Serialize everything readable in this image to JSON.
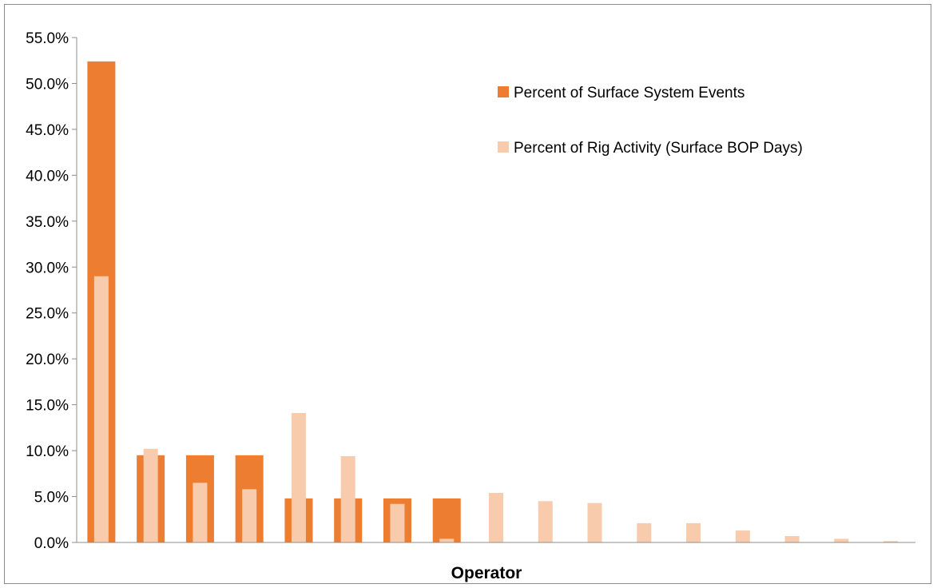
{
  "chart_data": {
    "type": "bar",
    "title": "",
    "xlabel": "Operator",
    "ylabel": "",
    "ylim": [
      0,
      55
    ],
    "yticks": [
      "0.0%",
      "5.0%",
      "10.0%",
      "15.0%",
      "20.0%",
      "25.0%",
      "30.0%",
      "35.0%",
      "40.0%",
      "45.0%",
      "50.0%",
      "55.0%"
    ],
    "categories": [
      "",
      "",
      "",
      "",
      "",
      "",
      "",
      "",
      "",
      "",
      "",
      "",
      "",
      "",
      "",
      "",
      ""
    ],
    "grid": false,
    "legend_placement": "top-right",
    "series": [
      {
        "name": "Percent of Surface System Events",
        "color": "#ed7d31",
        "values": [
          52.4,
          9.5,
          9.5,
          9.5,
          4.8,
          4.8,
          4.8,
          4.8,
          0,
          0,
          0,
          0,
          0,
          0,
          0,
          0,
          0
        ]
      },
      {
        "name": "Percent of Rig Activity (Surface BOP Days)",
        "color": "#f8cbad",
        "values": [
          29.0,
          10.2,
          6.5,
          5.8,
          14.1,
          9.4,
          4.2,
          0.4,
          5.4,
          4.5,
          4.3,
          2.1,
          2.1,
          1.3,
          0.7,
          0.4,
          0.15
        ]
      }
    ]
  }
}
